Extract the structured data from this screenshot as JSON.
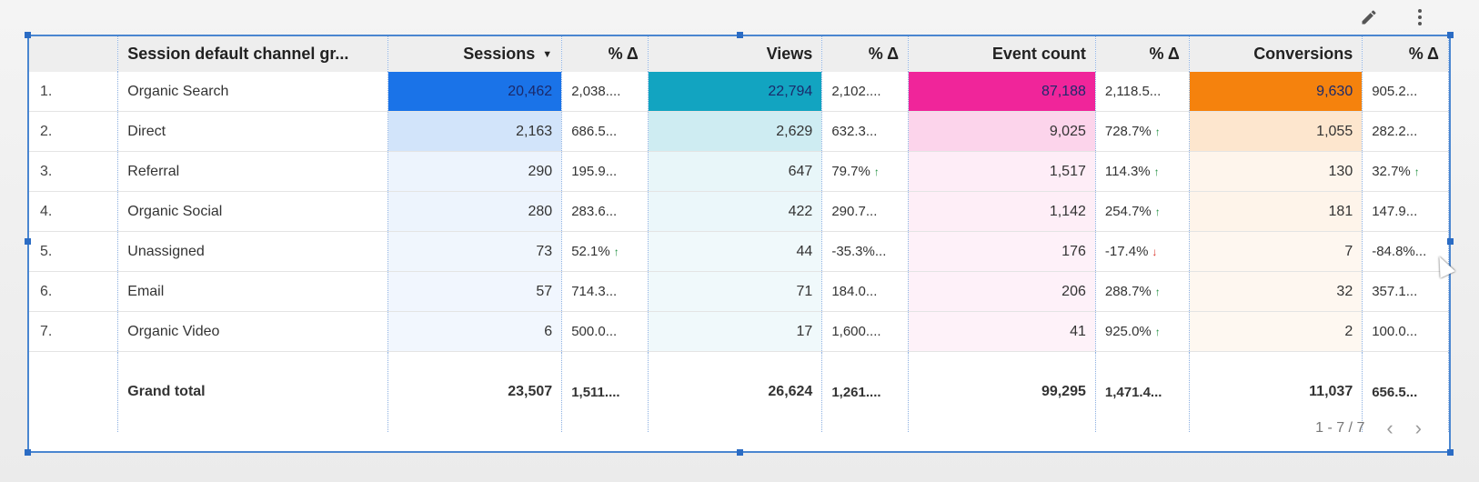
{
  "toolbar": {
    "edit_icon": "pencil-icon",
    "more_icon": "more-vert-icon"
  },
  "colors": {
    "sessions": "#1a73e8",
    "views": "#12a4c1",
    "event_count": "#f0259a",
    "conversions": "#f5820d"
  },
  "table": {
    "columns": [
      {
        "label": "",
        "key": "index"
      },
      {
        "label": "Session default channel gr...",
        "key": "channel"
      },
      {
        "label": "Sessions",
        "key": "sessions",
        "sorted": true
      },
      {
        "label": "% Δ",
        "key": "sessions_pct"
      },
      {
        "label": "Views",
        "key": "views"
      },
      {
        "label": "% Δ",
        "key": "views_pct"
      },
      {
        "label": "Event count",
        "key": "events"
      },
      {
        "label": "% Δ",
        "key": "events_pct"
      },
      {
        "label": "Conversions",
        "key": "conversions"
      },
      {
        "label": "% Δ",
        "key": "conversions_pct"
      }
    ],
    "rows": [
      {
        "index": "1.",
        "channel": "Organic Search",
        "sessions": "20,462",
        "sessions_pct": "2,038....",
        "views": "22,794",
        "views_pct": "2,102....",
        "events": "87,188",
        "events_pct": "2,118.5...",
        "conversions": "9,630",
        "conversions_pct": "905.2...",
        "level": [
          1,
          1,
          1,
          1
        ]
      },
      {
        "index": "2.",
        "channel": "Direct",
        "sessions": "2,163",
        "sessions_pct": "686.5...",
        "views": "2,629",
        "views_pct": "632.3...",
        "events": "9,025",
        "events_pct": "728.7%",
        "events_trend": "up",
        "conversions": "1,055",
        "conversions_pct": "282.2...",
        "level": [
          0.106,
          0.115,
          0.104,
          0.11
        ]
      },
      {
        "index": "3.",
        "channel": "Referral",
        "sessions": "290",
        "sessions_pct": "195.9...",
        "views": "647",
        "views_pct": "79.7%",
        "views_trend": "up",
        "events": "1,517",
        "events_pct": "114.3%",
        "events_trend": "up",
        "conversions": "130",
        "conversions_pct": "32.7%",
        "conversions_trend": "up",
        "level": [
          0.014,
          0.028,
          0.017,
          0.013
        ]
      },
      {
        "index": "4.",
        "channel": "Organic Social",
        "sessions": "280",
        "sessions_pct": "283.6...",
        "views": "422",
        "views_pct": "290.7...",
        "events": "1,142",
        "events_pct": "254.7%",
        "events_trend": "up",
        "conversions": "181",
        "conversions_pct": "147.9...",
        "level": [
          0.014,
          0.019,
          0.013,
          0.019
        ]
      },
      {
        "index": "5.",
        "channel": "Unassigned",
        "sessions": "73",
        "sessions_pct": "52.1%",
        "sessions_trend": "up",
        "views": "44",
        "views_pct": "-35.3%...",
        "events": "176",
        "events_pct": "-17.4%",
        "events_trend": "down",
        "conversions": "7",
        "conversions_pct": "-84.8%...",
        "level": [
          0.004,
          0.002,
          0.002,
          0.001
        ]
      },
      {
        "index": "6.",
        "channel": "Email",
        "sessions": "57",
        "sessions_pct": "714.3...",
        "views": "71",
        "views_pct": "184.0...",
        "events": "206",
        "events_pct": "288.7%",
        "events_trend": "up",
        "conversions": "32",
        "conversions_pct": "357.1...",
        "level": [
          0.003,
          0.003,
          0.002,
          0.003
        ]
      },
      {
        "index": "7.",
        "channel": "Organic Video",
        "sessions": "6",
        "sessions_pct": "500.0...",
        "views": "17",
        "views_pct": "1,600....",
        "events": "41",
        "events_pct": "925.0%",
        "events_trend": "up",
        "conversions": "2",
        "conversions_pct": "100.0...",
        "level": [
          0.0003,
          0.0007,
          0.0005,
          0.0002
        ]
      }
    ],
    "total": {
      "label": "Grand total",
      "sessions": "23,507",
      "sessions_pct": "1,511....",
      "views": "26,624",
      "views_pct": "1,261....",
      "events": "99,295",
      "events_pct": "1,471.4...",
      "conversions": "11,037",
      "conversions_pct": "656.5..."
    }
  },
  "pager": {
    "range": "1 - 7 / 7",
    "prev_icon": "chevron-left-icon",
    "next_icon": "chevron-right-icon"
  }
}
